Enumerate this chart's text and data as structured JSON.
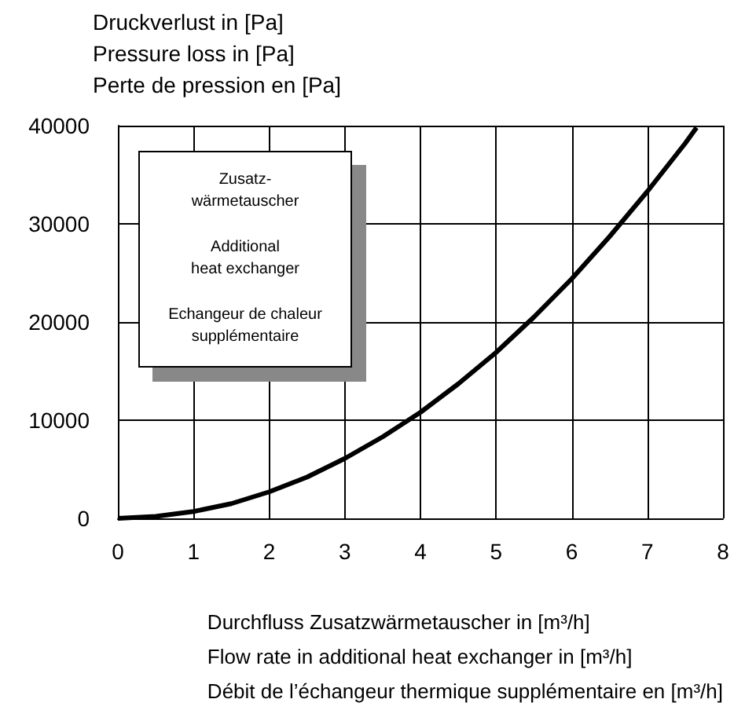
{
  "chart_data": {
    "type": "line",
    "ylabel": "Druckverlust in [Pa]\nPressure loss in [Pa]\nPerte de pression en [Pa]",
    "xlabel": "Durchfluss Zusatzwärmetauscher in [m³/h]\nFlow rate in additional heat exchanger in [m³/h]\nDébit de l’échangeur thermique supplémentaire en [m³/h]",
    "annotations": [
      "Zusatz-\nwärmetauscher",
      "Additional\nheat exchanger",
      "Echangeur de chaleur\nsupplémentaire"
    ],
    "series": [
      {
        "color": "#000000",
        "x": [
          0,
          0.5,
          1,
          1.5,
          2,
          2.5,
          3,
          3.5,
          4,
          4.5,
          5,
          5.5,
          6,
          6.5,
          7,
          7.5,
          7.65
        ],
        "values": [
          0,
          200,
          700,
          1500,
          2700,
          4200,
          6100,
          8300,
          10800,
          13700,
          16900,
          20500,
          24400,
          28700,
          33300,
          38200,
          39800
        ]
      }
    ],
    "xlim": [
      0,
      8
    ],
    "xticks": [
      0,
      1,
      2,
      3,
      4,
      5,
      6,
      7,
      8
    ],
    "ylim": [
      0,
      40000
    ],
    "yticks": [
      0,
      10000,
      20000,
      30000,
      40000
    ],
    "grid": true,
    "marker": "none",
    "line_style": "solid"
  }
}
